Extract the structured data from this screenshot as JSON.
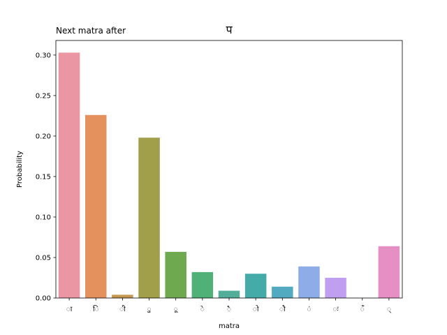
{
  "chart_data": {
    "type": "bar",
    "title": "Next matra after",
    "title_glyph": "प",
    "xlabel": "matra",
    "ylabel": "Probability",
    "categories": [
      "ा",
      "ि",
      "ी",
      "ु",
      "ू",
      "े",
      "ै",
      "ो",
      "ौ",
      "ं",
      "ः",
      "ँ",
      "्"
    ],
    "values": [
      0.303,
      0.226,
      0.004,
      0.198,
      0.057,
      0.032,
      0.009,
      0.03,
      0.014,
      0.039,
      0.025,
      0.0,
      0.064
    ],
    "colors": [
      "#ea96a3",
      "#e4915e",
      "#c7964f",
      "#a19f4a",
      "#6ea84f",
      "#50b178",
      "#52ae98",
      "#45aba8",
      "#51aac0",
      "#8eade8",
      "#c19ff0",
      "#e58ee4",
      "#e68fc4"
    ],
    "ylim": [
      0,
      0.318
    ],
    "yticks": [
      "0.00",
      "0.05",
      "0.10",
      "0.15",
      "0.20",
      "0.25",
      "0.30"
    ],
    "grid": false,
    "legend": "none"
  }
}
